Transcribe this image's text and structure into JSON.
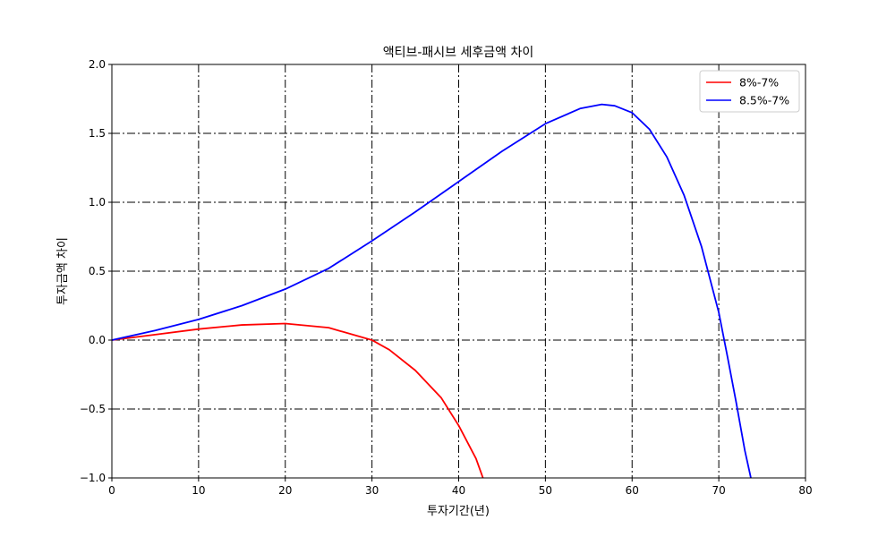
{
  "chart_data": {
    "type": "line",
    "title": "액티브-패시브 세후금액 차이",
    "xlabel": "투자기간(년)",
    "ylabel": "투자금액 차이",
    "xlim": [
      0,
      80
    ],
    "ylim": [
      -1.0,
      2.0
    ],
    "x_ticks": [
      "0",
      "10",
      "20",
      "30",
      "40",
      "50",
      "60",
      "70",
      "80"
    ],
    "y_ticks": [
      "−1.0",
      "−0.5",
      "0.0",
      "0.5",
      "1.0",
      "1.5",
      "2.0"
    ],
    "x_tick_values": [
      0,
      10,
      20,
      30,
      40,
      50,
      60,
      70,
      80
    ],
    "y_tick_values": [
      -1.0,
      -0.5,
      0.0,
      0.5,
      1.0,
      1.5,
      2.0
    ],
    "grid": true,
    "grid_style": "dash-dot",
    "legend_position": "top-right",
    "series": [
      {
        "name": "8%-7%",
        "color": "#ff0000",
        "x": [
          0,
          5,
          10,
          15,
          20,
          25,
          30,
          32,
          35,
          38,
          40,
          42,
          42.8
        ],
        "y": [
          0,
          0.04,
          0.08,
          0.11,
          0.12,
          0.09,
          0.0,
          -0.07,
          -0.22,
          -0.42,
          -0.62,
          -0.86,
          -1.0
        ]
      },
      {
        "name": "8.5%-7%",
        "color": "#0000ff",
        "x": [
          0,
          5,
          10,
          15,
          20,
          25,
          30,
          35,
          40,
          45,
          50,
          54,
          56.5,
          58,
          60,
          62,
          64,
          66,
          68,
          70,
          71,
          72,
          73,
          73.7
        ],
        "y": [
          0,
          0.07,
          0.15,
          0.25,
          0.37,
          0.52,
          0.72,
          0.93,
          1.15,
          1.37,
          1.57,
          1.68,
          1.71,
          1.7,
          1.65,
          1.53,
          1.33,
          1.05,
          0.68,
          0.2,
          -0.12,
          -0.45,
          -0.8,
          -1.0
        ]
      }
    ]
  }
}
